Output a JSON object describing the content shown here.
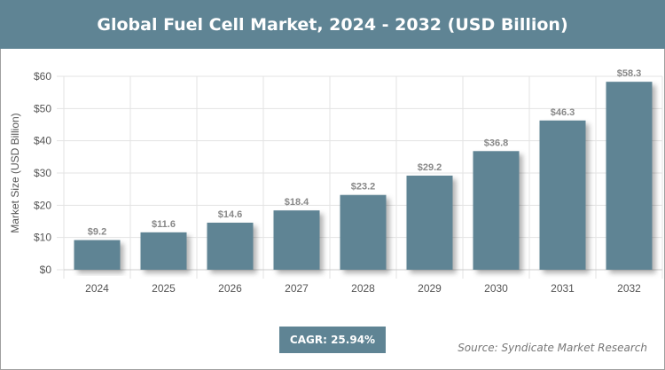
{
  "header": {
    "title": "Global Fuel Cell Market, 2024 - 2032 (USD Billion)"
  },
  "chart_data": {
    "type": "bar",
    "title": "Global Fuel Cell Market, 2024 - 2032 (USD Billion)",
    "ylabel": "Market Size (USD Billion)",
    "xlabel": "",
    "categories": [
      "2024",
      "2025",
      "2026",
      "2027",
      "2028",
      "2029",
      "2030",
      "2031",
      "2032"
    ],
    "values": [
      9.2,
      11.6,
      14.6,
      18.4,
      23.2,
      29.2,
      36.8,
      46.3,
      58.3
    ],
    "data_labels": [
      "$9.2",
      "$11.6",
      "$14.6",
      "$18.4",
      "$23.2",
      "$29.2",
      "$36.8",
      "$46.3",
      "$58.3"
    ],
    "ylim": [
      0,
      60
    ],
    "yticks": [
      "$0",
      "$10",
      "$20",
      "$30",
      "$40",
      "$50",
      "$60"
    ],
    "grid": true,
    "bar_color": "#5f8494"
  },
  "footer": {
    "cagr": "CAGR: 25.94%",
    "source": "Source: Syndicate Market Research"
  }
}
